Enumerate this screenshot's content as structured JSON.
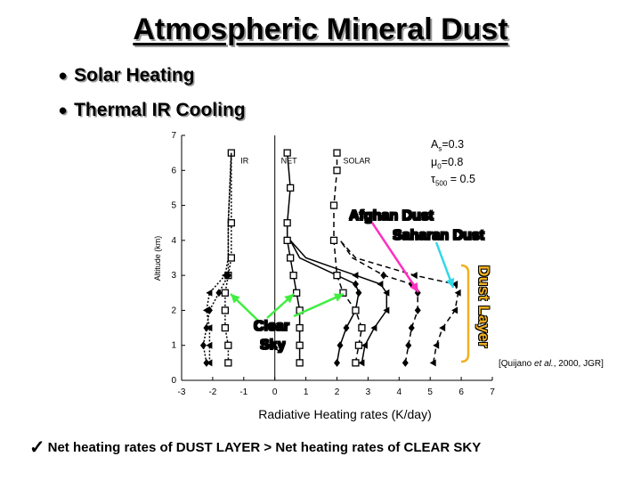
{
  "title": "Atmospheric Mineral Dust",
  "bullets": [
    "Solar Heating",
    "Thermal IR Cooling"
  ],
  "footer": {
    "check_icon": "checkmark-icon",
    "text": "Net heating rates of DUST LAYER > Net heating rates of CLEAR SKY"
  },
  "citation": {
    "prefix": "[Quijano ",
    "italic": "et al.",
    "suffix": ", 2000, JGR]"
  },
  "params": {
    "a_main": "A",
    "a_sub": "s",
    "a_val": "=0.3",
    "mu_main": "μ",
    "mu_sub": "0",
    "mu_val": "=0.8",
    "tau_main": "τ",
    "tau_sub": "500",
    "tau_val": " = 0.5"
  },
  "callouts": {
    "afghan": "Afghan Dust",
    "saharan": "Saharan Dust",
    "clear_line1": "Clear",
    "clear_line2": "Sky",
    "dust_layer": "Dust Layer"
  },
  "colors": {
    "afghan": "#ff30c0",
    "saharan": "#30d8e8",
    "clear": "#40ee40",
    "dust_layer": "#f0b020"
  },
  "chart_data": {
    "type": "line",
    "xlabel": "Radiative Heating rates (K/day)",
    "ylabel": "Altitude (km)",
    "xlim": [
      -3,
      7
    ],
    "ylim": [
      0,
      7
    ],
    "xticks": [
      "-3",
      "-2",
      "-1",
      "0",
      "1",
      "2",
      "3",
      "4",
      "5",
      "6",
      "7"
    ],
    "yticks": [
      "0",
      "1",
      "2",
      "3",
      "4",
      "5",
      "6",
      "7"
    ],
    "curve_labels": [
      "IR",
      "NET",
      "SOLAR"
    ],
    "series": [
      {
        "name": "IR",
        "case": "clear",
        "style": "dotted",
        "marker": "square",
        "x": [
          -1.5,
          -1.5,
          -1.6,
          -1.6,
          -1.6,
          -1.5,
          -1.4,
          -1.4,
          -1.4
        ],
        "y": [
          0.5,
          1.0,
          1.5,
          2.0,
          2.5,
          3.0,
          3.5,
          4.5,
          6.5
        ]
      },
      {
        "name": "IR",
        "case": "dust",
        "style": "dotted",
        "marker": "triangle",
        "x": [
          -2.1,
          -2.1,
          -2.1,
          -2.2,
          -2.1,
          -1.6,
          -1.5,
          -1.5,
          -1.4
        ],
        "y": [
          0.5,
          1.0,
          1.5,
          2.0,
          2.5,
          3.0,
          3.5,
          4.5,
          6.5
        ]
      },
      {
        "name": "IR",
        "case": "dust2",
        "style": "dotted",
        "marker": "diamond",
        "x": [
          -2.2,
          -2.3,
          -2.2,
          -2.1,
          -1.8,
          -1.5,
          -1.5,
          -1.4
        ],
        "y": [
          0.5,
          1.0,
          1.5,
          2.0,
          2.5,
          3.0,
          4.5,
          6.5
        ]
      },
      {
        "name": "NET",
        "case": "clear",
        "style": "solid",
        "marker": "square",
        "x": [
          0.8,
          0.8,
          0.8,
          0.8,
          0.7,
          0.6,
          0.5,
          0.4,
          0.4,
          0.5,
          0.4
        ],
        "y": [
          0.5,
          1.0,
          1.5,
          2.0,
          2.5,
          3.0,
          3.5,
          4.0,
          4.5,
          5.5,
          6.5
        ]
      },
      {
        "name": "NET",
        "case": "afghan",
        "style": "solid",
        "marker": "diamond",
        "x": [
          2.0,
          2.1,
          2.3,
          2.6,
          2.7,
          2.6,
          2.0,
          0.8,
          0.5
        ],
        "y": [
          0.5,
          1.0,
          1.5,
          2.0,
          2.5,
          2.75,
          3.0,
          3.5,
          4.0
        ]
      },
      {
        "name": "NET",
        "case": "saharan",
        "style": "solid",
        "marker": "triangle",
        "x": [
          2.8,
          2.9,
          3.2,
          3.6,
          3.6,
          3.4,
          2.6,
          1.0,
          0.5
        ],
        "y": [
          0.5,
          1.0,
          1.5,
          2.0,
          2.5,
          2.75,
          3.0,
          3.5,
          4.0
        ]
      },
      {
        "name": "SOLAR",
        "case": "clear",
        "style": "dashed",
        "marker": "square",
        "x": [
          2.6,
          2.7,
          2.8,
          2.6,
          2.2,
          2.0,
          1.9,
          1.9,
          2.0,
          2.0
        ],
        "y": [
          0.5,
          1.0,
          1.5,
          2.0,
          2.5,
          3.0,
          4.0,
          5.0,
          6.0,
          6.5
        ]
      },
      {
        "name": "SOLAR",
        "case": "afghan",
        "style": "dashed",
        "marker": "diamond",
        "x": [
          4.2,
          4.3,
          4.4,
          4.6,
          4.6,
          4.4,
          3.5,
          2.5,
          2.1
        ],
        "y": [
          0.5,
          1.0,
          1.5,
          2.0,
          2.5,
          2.75,
          3.0,
          3.5,
          4.0
        ]
      },
      {
        "name": "SOLAR",
        "case": "saharan",
        "style": "dashed",
        "marker": "triangle",
        "x": [
          5.1,
          5.2,
          5.4,
          5.8,
          5.9,
          5.8,
          4.5,
          2.6,
          2.1
        ],
        "y": [
          0.5,
          1.0,
          1.5,
          2.0,
          2.5,
          2.75,
          3.0,
          3.5,
          4.0
        ]
      }
    ]
  }
}
